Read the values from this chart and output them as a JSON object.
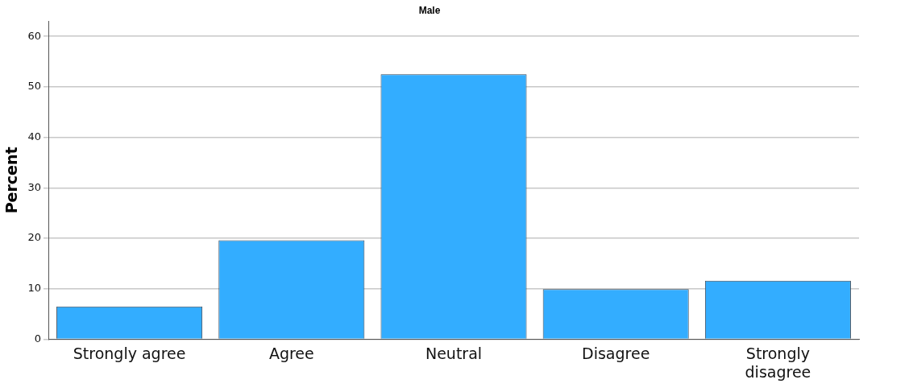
{
  "chart_data": {
    "type": "bar",
    "title": "Male",
    "ylabel": "Percent",
    "categories": [
      "Strongly agree",
      "Agree",
      "Neutral",
      "Disagree",
      "Strongly disagree"
    ],
    "values": [
      6.5,
      19.6,
      52.5,
      9.9,
      11.6
    ],
    "color": "#33adff",
    "ylim": [
      0,
      63
    ],
    "yticks": [
      0,
      10,
      20,
      30,
      40,
      50,
      60
    ],
    "grid": "y",
    "legend": false
  }
}
